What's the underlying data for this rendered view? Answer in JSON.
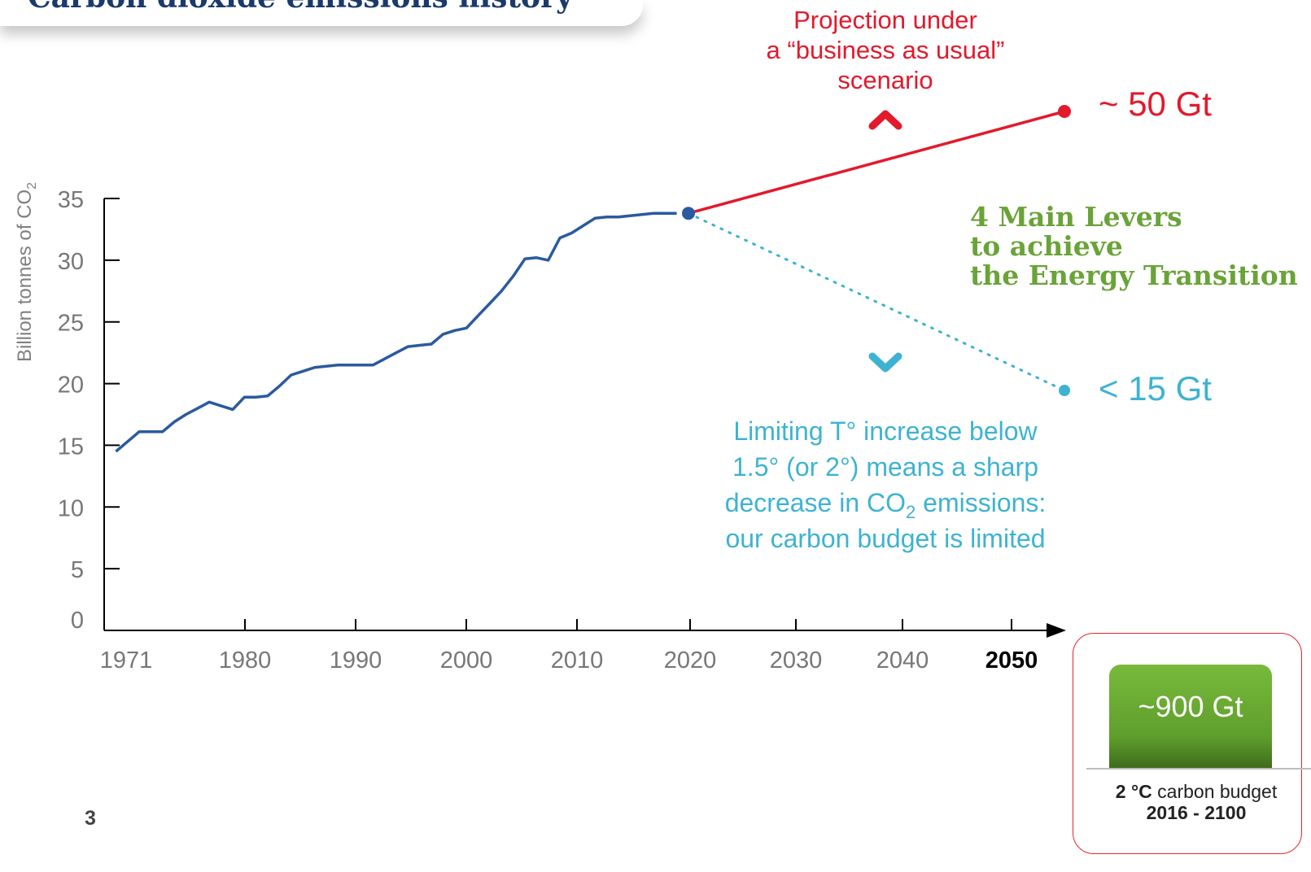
{
  "header": {
    "title": "Carbon dioxide emissions history"
  },
  "page_number": "3",
  "annotations": {
    "projection_line1": "Projection under",
    "projection_line2": "a “business as usual”",
    "projection_line3": "scenario",
    "high_value": "~ 50 Gt",
    "low_value": "< 15 Gt",
    "levers_line1": "4 Main Levers",
    "levers_line2": "to achieve",
    "levers_line3": "the Energy Transition",
    "limiting_line1": "Limiting T° increase below",
    "limiting_line2": "1.5° (or 2°) means a sharp",
    "limiting_line3_pre": "decrease in CO",
    "limiting_line3_sub": "2",
    "limiting_line3_post": " emissions:",
    "limiting_line4": "our carbon budget is limited"
  },
  "budget": {
    "value": "~900 Gt",
    "caption_bold": "2 °C",
    "caption_rest": " carbon budget",
    "years": "2016 - 2100"
  },
  "colors": {
    "historical": "#2a5aa0",
    "projection": "#e3192c",
    "target": "#3eb3d1",
    "levers": "#6aa338",
    "budget_bar": "#6aaa34"
  },
  "chart_data": {
    "type": "line",
    "title": "",
    "xlabel": "",
    "ylabel_main": "Billion tonnes of CO",
    "ylabel_sub": "2",
    "ylim": [
      0,
      35
    ],
    "yticks": [
      0,
      5,
      10,
      15,
      20,
      25,
      30,
      35
    ],
    "x_tick_labels": [
      "1971",
      "1980",
      "1990",
      "2000",
      "2010",
      "2020",
      "2030",
      "2040",
      "2050"
    ],
    "x_tick_bold": "2050",
    "series": [
      {
        "role": "historical",
        "x": [
          1971,
          1972,
          1973,
          1974,
          1975,
          1976,
          1977,
          1978,
          1979,
          1980,
          1981,
          1982,
          1983,
          1984,
          1985,
          1986,
          1987,
          1988,
          1989,
          1990,
          1991,
          1992,
          1993,
          1994,
          1995,
          1996,
          1997,
          1998,
          1999,
          2000,
          2001,
          2002,
          2003,
          2004,
          2005,
          2006,
          2007,
          2008,
          2009,
          2010,
          2011,
          2012,
          2013,
          2014,
          2015,
          2016,
          2017,
          2018,
          2019
        ],
        "y": [
          14.5,
          15.3,
          16.1,
          16.1,
          16.1,
          16.9,
          17.5,
          18.0,
          18.5,
          18.2,
          17.9,
          18.9,
          18.9,
          19.0,
          19.8,
          20.7,
          21.0,
          21.3,
          21.4,
          21.5,
          21.5,
          21.5,
          21.5,
          22.0,
          22.5,
          23.0,
          23.1,
          23.2,
          24.0,
          24.3,
          24.5,
          25.5,
          26.5,
          27.5,
          28.7,
          30.1,
          30.2,
          30.0,
          31.8,
          32.2,
          32.8,
          33.4,
          33.5,
          33.5,
          33.6,
          33.7,
          33.8,
          33.8,
          33.8
        ]
      },
      {
        "role": "business-as-usual projection",
        "x": [
          2020,
          2050
        ],
        "y": [
          33.8,
          50
        ]
      },
      {
        "role": "limited carbon budget path",
        "x": [
          2020,
          2050
        ],
        "y": [
          33.8,
          15
        ]
      }
    ]
  }
}
